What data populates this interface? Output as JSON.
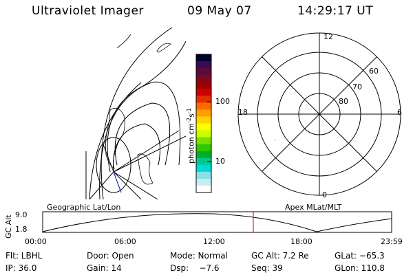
{
  "header": {
    "instrument": "Ultraviolet Imager",
    "date": "09 May 07",
    "time": "14:29:17 UT"
  },
  "colorbar": {
    "unit_prefix": "photon cm",
    "unit_exp1": "-2",
    "unit_mid": "s",
    "unit_exp2": "-1",
    "ticks": [
      "100",
      "10"
    ],
    "colors": [
      "#000033",
      "#3a0a4a",
      "#5a0d3a",
      "#7a0a20",
      "#a00000",
      "#cc0000",
      "#e03000",
      "#ff6a00",
      "#ffa000",
      "#ffd200",
      "#ffff00",
      "#c8ff00",
      "#7ae000",
      "#30c800",
      "#00b020",
      "#00c890",
      "#00d8d8",
      "#88e0e8",
      "#c8ecf0",
      "#ffffff"
    ]
  },
  "polar": {
    "hour_labels": {
      "top": "12",
      "left": "18",
      "right": "6",
      "bottom": "0"
    },
    "lat_labels": [
      "60",
      "70",
      "80"
    ]
  },
  "timeline": {
    "left_title": "Geographic Lat/Lon",
    "right_title": "Apex MLat/MLT",
    "y_axis_label": "GC Alt",
    "y_ticks": [
      "9.0",
      "1.8"
    ],
    "x_ticks": [
      "00:00",
      "06:00",
      "12:00",
      "18:00",
      "23:59"
    ],
    "altitude_range_re": [
      1.8,
      9.0
    ],
    "current_time_fraction": 0.6036
  },
  "info": {
    "row1": [
      {
        "name": "flt",
        "text": "Flt: LBHL"
      },
      {
        "name": "door",
        "text": "Door: Open"
      },
      {
        "name": "mode",
        "text": "Mode: Normal"
      },
      {
        "name": "gc-alt",
        "text": "GC Alt: 7.2 Re"
      },
      {
        "name": "glat",
        "text": "GLat: −65.3"
      }
    ],
    "row2": [
      {
        "name": "ip",
        "text": "IP: 36.0"
      },
      {
        "name": "gain",
        "text": "Gain: 14"
      },
      {
        "name": "dsp",
        "text": "Dsp:    −7.6"
      },
      {
        "name": "seq",
        "text": "Seq: 39"
      },
      {
        "name": "glon",
        "text": "GLon: 110.8"
      }
    ]
  }
}
